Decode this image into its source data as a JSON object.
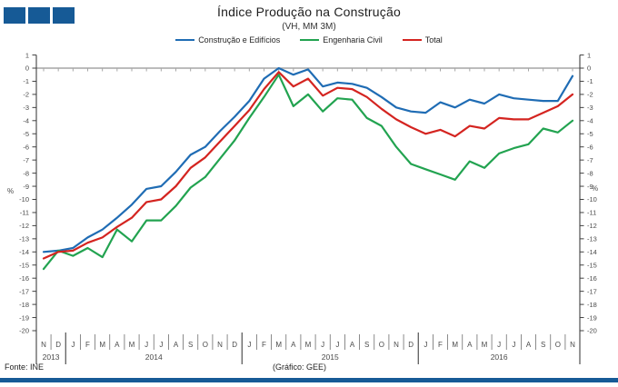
{
  "theme": {
    "accent": "#165a96",
    "axis_color": "#404040",
    "grid_color": "#a6a6a6",
    "label_color": "#4a4a4a"
  },
  "header": {
    "title": "Índice Produção na Construção",
    "subtitle": "(VH, MM 3M)"
  },
  "footer": {
    "source": "Fonte:  INE",
    "credit": "(Gráfico:  GEE)"
  },
  "chart_data": {
    "type": "line",
    "title": "Índice Produção na Construção",
    "subtitle": "(VH, MM 3M)",
    "ylabel": "%",
    "ylim": [
      -20,
      1
    ],
    "grid": "zero-line-only",
    "legend_position": "top",
    "y_ticks": [
      1,
      0,
      -1,
      -2,
      -3,
      -4,
      -5,
      -6,
      -7,
      -8,
      -9,
      -10,
      -11,
      -12,
      -13,
      -14,
      -15,
      -16,
      -17,
      -18,
      -19,
      -20
    ],
    "categories": [
      "N",
      "D",
      "J",
      "F",
      "M",
      "A",
      "M",
      "J",
      "J",
      "A",
      "S",
      "O",
      "N",
      "D",
      "J",
      "F",
      "M",
      "A",
      "M",
      "J",
      "J",
      "A",
      "S",
      "O",
      "N",
      "D",
      "J",
      "F",
      "M",
      "A",
      "M",
      "J",
      "J",
      "A",
      "S",
      "O",
      "N"
    ],
    "year_groups": [
      {
        "label": "2013",
        "start": 0,
        "end": 1
      },
      {
        "label": "2014",
        "start": 2,
        "end": 13
      },
      {
        "label": "2015",
        "start": 14,
        "end": 25
      },
      {
        "label": "2016",
        "start": 26,
        "end": 36
      }
    ],
    "series": [
      {
        "name": "Construção e Edifícios",
        "color": "#1f6cb4",
        "values": [
          -14.0,
          -13.9,
          -13.7,
          -12.9,
          -12.3,
          -11.4,
          -10.4,
          -9.2,
          -9.0,
          -7.9,
          -6.6,
          -6.0,
          -4.8,
          -3.7,
          -2.5,
          -0.8,
          0.0,
          -0.5,
          -0.1,
          -1.4,
          -1.1,
          -1.2,
          -1.5,
          -2.2,
          -3.0,
          -3.3,
          -3.4,
          -2.6,
          -3.0,
          -2.4,
          -2.7,
          -2.0,
          -2.3,
          -2.4,
          -2.5,
          -2.5,
          -0.6
        ]
      },
      {
        "name": "Engenharia Civil",
        "color": "#22a350",
        "values": [
          -15.3,
          -13.9,
          -14.3,
          -13.7,
          -14.4,
          -12.3,
          -13.2,
          -11.6,
          -11.6,
          -10.5,
          -9.1,
          -8.3,
          -6.9,
          -5.5,
          -3.8,
          -2.2,
          -0.5,
          -2.9,
          -2.0,
          -3.3,
          -2.3,
          -2.4,
          -3.8,
          -4.4,
          -6.0,
          -7.3,
          -7.7,
          -8.1,
          -8.5,
          -7.1,
          -7.6,
          -6.5,
          -6.1,
          -5.8,
          -4.6,
          -4.9,
          -4.0
        ]
      },
      {
        "name": "Total",
        "color": "#d42420",
        "values": [
          -14.5,
          -14.0,
          -13.9,
          -13.3,
          -12.9,
          -12.1,
          -11.4,
          -10.2,
          -10.0,
          -9.0,
          -7.6,
          -6.8,
          -5.6,
          -4.4,
          -3.2,
          -1.6,
          -0.3,
          -1.4,
          -0.8,
          -2.1,
          -1.5,
          -1.6,
          -2.2,
          -3.1,
          -3.9,
          -4.5,
          -5.0,
          -4.7,
          -5.2,
          -4.4,
          -4.6,
          -3.8,
          -3.9,
          -3.9,
          -3.4,
          -2.9,
          -2.0
        ]
      }
    ]
  }
}
